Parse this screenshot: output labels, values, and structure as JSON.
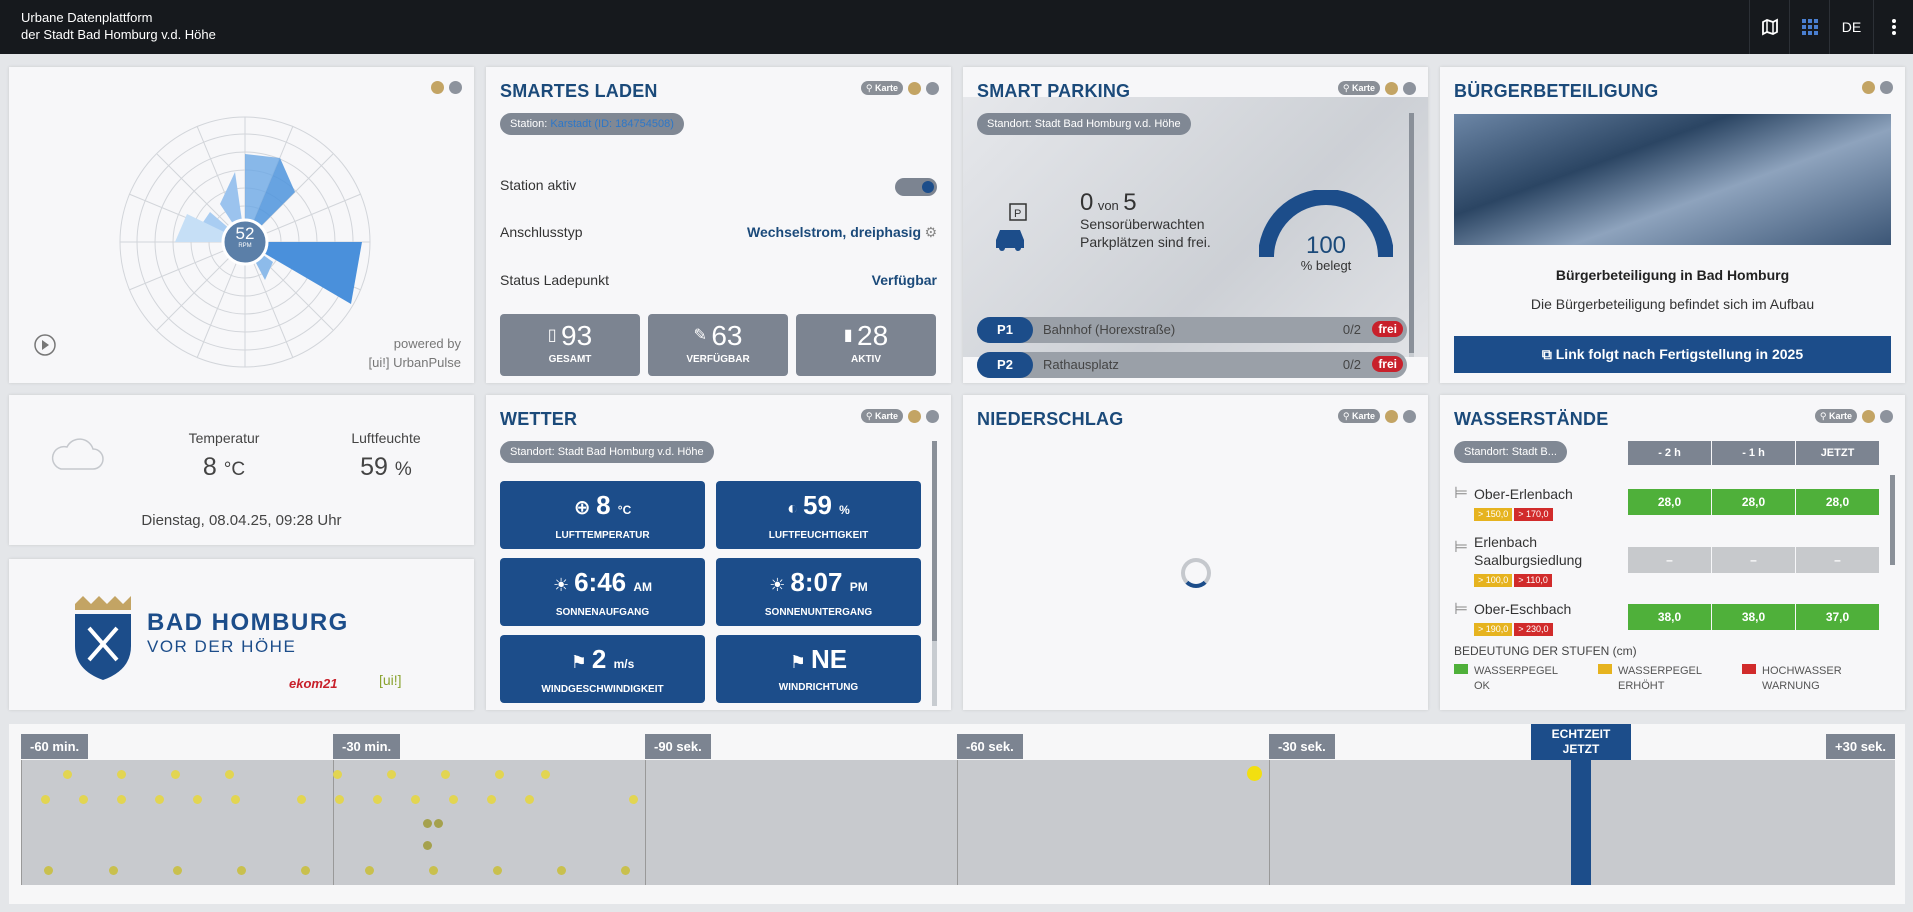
{
  "header": {
    "line1": "Urbane Datenplattform",
    "line2": "der Stadt Bad Homburg v.d. Höhe",
    "lang": "DE",
    "icons": [
      "map-icon",
      "grid-icon",
      "more-icon"
    ]
  },
  "radar": {
    "value": "52",
    "unit": "RPM",
    "powered_by": "powered by",
    "powered_name": "[ui!] UrbanPulse"
  },
  "laden": {
    "title": "SMARTES LADEN",
    "karte": "Karte",
    "station_label": "Station:",
    "station_link": "Karstadt (ID: 184754508)",
    "rows": [
      {
        "label": "Station aktiv",
        "value": ""
      },
      {
        "label": "Anschlusstyp",
        "value": "Wechselstrom, dreiphasig"
      },
      {
        "label": "Status Ladepunkt",
        "value": "Verfügbar"
      }
    ],
    "stats": [
      {
        "value": "93",
        "label": "GESAMT"
      },
      {
        "value": "63",
        "label": "VERFÜGBAR"
      },
      {
        "value": "28",
        "label": "AKTIV"
      }
    ]
  },
  "parking": {
    "title": "SMART PARKING",
    "karte": "Karte",
    "location": "Standort: Stadt Bad Homburg v.d. Höhe",
    "free": "0",
    "von": "von",
    "total": "5",
    "text1": "Sensorüberwachten",
    "text2": "Parkplätzen sind frei.",
    "gauge": "100",
    "gauge_label": "% belegt",
    "rows": [
      {
        "id": "P1",
        "name": "Bahnhof (Horexstraße)",
        "count": "0/2",
        "status": "frei"
      },
      {
        "id": "P2",
        "name": "Rathausplatz",
        "count": "0/2",
        "status": "frei"
      }
    ]
  },
  "buerger": {
    "title": "BÜRGERBETEILIGUNG",
    "heading": "Bürgerbeteiligung in Bad Homburg",
    "text": "Die Bürgerbeteiligung befindet sich im Aufbau",
    "button": "Link folgt nach Fertigstellung in 2025"
  },
  "klima": {
    "temp_label": "Temperatur",
    "temp_value": "8",
    "temp_unit": "°C",
    "hum_label": "Luftfeuchte",
    "hum_value": "59",
    "hum_unit": "%",
    "datetime": "Dienstag, 08.04.25, 09:28 Uhr"
  },
  "logo": {
    "line1": "BAD HOMBURG",
    "line2": "VOR DER HÖHE",
    "partner1": "ekom21",
    "partner2": "[ui!]"
  },
  "wetter": {
    "title": "WETTER",
    "karte": "Karte",
    "location": "Standort: Stadt Bad Homburg v.d. Höhe",
    "tiles": [
      {
        "value": "8",
        "unit": "°C",
        "label": "LUFTTEMPERATUR"
      },
      {
        "value": "59",
        "unit": "%",
        "label": "LUFTFEUCHTIGKEIT"
      },
      {
        "value": "6:46",
        "unit": "AM",
        "label": "SONNENAUFGANG"
      },
      {
        "value": "8:07",
        "unit": "PM",
        "label": "SONNENUNTERGANG"
      },
      {
        "value": "2",
        "unit": "m/s",
        "label": "WINDGESCHWINDIGKEIT"
      },
      {
        "value": "NE",
        "unit": "",
        "label": "WINDRICHTUNG"
      }
    ]
  },
  "nieder": {
    "title": "NIEDERSCHLAG",
    "karte": "Karte"
  },
  "wasser": {
    "title": "WASSERSTÄNDE",
    "karte": "Karte",
    "location": "Standort: Stadt B...",
    "headers": [
      "- 2 h",
      "- 1 h",
      "JETZT"
    ],
    "gauges": [
      {
        "name": "Ober-Erlenbach",
        "name2": "",
        "b1": "> 150,0",
        "b2": "> 170,0",
        "vals": [
          "28,0",
          "28,0",
          "28,0"
        ]
      },
      {
        "name": "Erlenbach",
        "name2": "Saalburgsiedlung",
        "b1": "> 100,0",
        "b2": "> 110,0",
        "vals": [
          "–",
          "–",
          "–"
        ]
      },
      {
        "name": "Ober-Eschbach",
        "name2": "",
        "b1": "> 190,0",
        "b2": "> 230,0",
        "vals": [
          "38,0",
          "38,0",
          "37,0"
        ]
      }
    ],
    "legend_title": "BEDEUTUNG DER STUFEN (cm)",
    "legend": [
      {
        "l1": "WASSERPEGEL",
        "l2": "OK",
        "color": "#4fb03a"
      },
      {
        "l1": "WASSERPEGEL",
        "l2": "ERHÖHT",
        "color": "#e6b31f"
      },
      {
        "l1": "HOCHWASSER",
        "l2": "WARNUNG",
        "color": "#d12b2b"
      }
    ]
  },
  "timeline": {
    "segments": [
      "-60 min.",
      "-30 min.",
      "-90 sek.",
      "-60 sek.",
      "-30 sek.",
      "+30 sek."
    ],
    "now1": "ECHTZEIT",
    "now2": "JETZT"
  },
  "colors": {
    "navy": "#1c4d8a",
    "accent": "#1b4a7a",
    "green": "#4fb03a",
    "red": "#c8202b"
  }
}
